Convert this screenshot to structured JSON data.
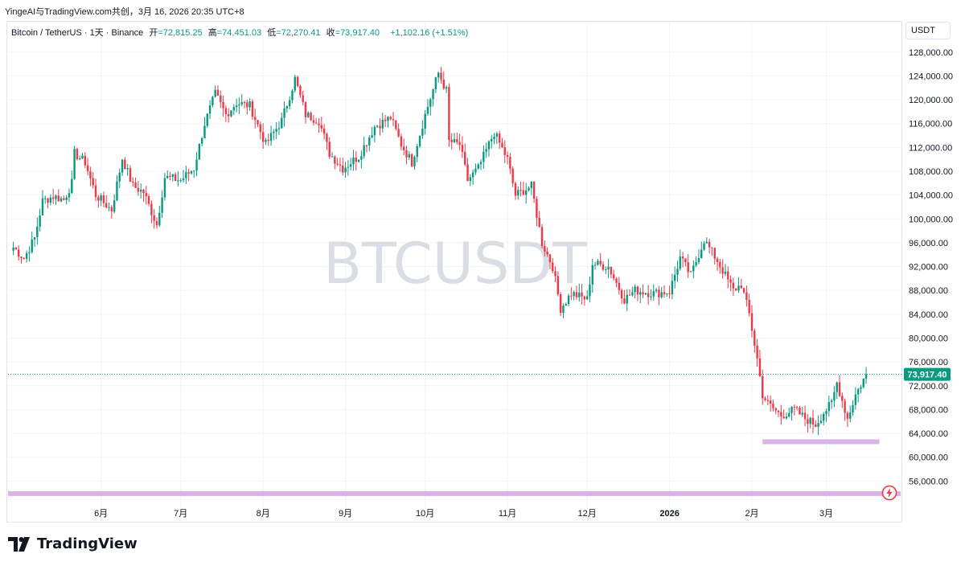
{
  "caption": "YingeAI与TradingView.com共创，3月 16, 2026 20:35 UTC+8",
  "legend": {
    "symbol": "Bitcoin / TetherUS · 1天 · Binance",
    "open_label": "开",
    "open_value": "=72,815.25",
    "high_label": "高",
    "high_value": "=74,451.03",
    "low_label": "低",
    "low_value": "=72,270.41",
    "close_label": "收",
    "close_value": "=73,917.40",
    "change": "+1,102.16 (+1.51%)"
  },
  "currency_label": "USDT",
  "brand": "TradingView",
  "colors": {
    "up": "#089981",
    "down": "#f23645",
    "zone": "#d9b2e6",
    "grid": "#f0f3fa",
    "text": "#131722",
    "watermark": "#dadde3"
  },
  "chart_data": {
    "type": "candlestick",
    "watermark": "BTCUSDT",
    "ylim": [
      52000,
      130000
    ],
    "y_ticks": [
      56000,
      60000,
      64000,
      68000,
      72000,
      76000,
      80000,
      84000,
      88000,
      92000,
      96000,
      100000,
      104000,
      108000,
      112000,
      116000,
      120000,
      124000,
      128000
    ],
    "y_tick_labels": [
      "56,000.00",
      "60,000.00",
      "64,000.00",
      "68,000.00",
      "72,000.00",
      "76,000.00",
      "80,000.00",
      "84,000.00",
      "88,000.00",
      "92,000.00",
      "96,000.00",
      "100,000.00",
      "104,000.00",
      "108,000.00",
      "112,000.00",
      "116,000.00",
      "120,000.00",
      "124,000.00",
      "128,000.00"
    ],
    "x_ticks": [
      {
        "date": "2025-06-01",
        "label": "6月"
      },
      {
        "date": "2025-07-01",
        "label": "7月"
      },
      {
        "date": "2025-08-01",
        "label": "8月"
      },
      {
        "date": "2025-09-01",
        "label": "9月"
      },
      {
        "date": "2025-10-01",
        "label": "10月"
      },
      {
        "date": "2025-11-01",
        "label": "11月"
      },
      {
        "date": "2025-12-01",
        "label": "12月"
      },
      {
        "date": "2026-01-01",
        "label": "2026",
        "bold": true
      },
      {
        "date": "2026-02-01",
        "label": "2月"
      },
      {
        "date": "2026-03-01",
        "label": "3月"
      }
    ],
    "x_start": "2025-04-27",
    "x_end": "2026-03-29",
    "last_price": 73917.4,
    "last_price_label": "73,917.40",
    "zones": [
      {
        "from": "2026-02-05",
        "to": "2026-03-21",
        "price": 62600
      },
      {
        "from": "2025-04-27",
        "to": "2026-03-29",
        "price": 53900
      }
    ],
    "close_path": [
      [
        "2025-04-29",
        95200
      ],
      [
        "2025-05-03",
        93400
      ],
      [
        "2025-05-07",
        96800
      ],
      [
        "2025-05-10",
        103000
      ],
      [
        "2025-05-14",
        103800
      ],
      [
        "2025-05-18",
        103200
      ],
      [
        "2025-05-21",
        106000
      ],
      [
        "2025-05-22",
        111000
      ],
      [
        "2025-05-26",
        109500
      ],
      [
        "2025-05-30",
        104000
      ],
      [
        "2025-06-05",
        101500
      ],
      [
        "2025-06-09",
        110200
      ],
      [
        "2025-06-13",
        105500
      ],
      [
        "2025-06-17",
        104500
      ],
      [
        "2025-06-22",
        99000
      ],
      [
        "2025-06-25",
        107000
      ],
      [
        "2025-07-01",
        106500
      ],
      [
        "2025-07-06",
        108500
      ],
      [
        "2025-07-10",
        116000
      ],
      [
        "2025-07-14",
        121000
      ],
      [
        "2025-07-18",
        117500
      ],
      [
        "2025-07-22",
        119500
      ],
      [
        "2025-07-27",
        119000
      ],
      [
        "2025-08-02",
        112500
      ],
      [
        "2025-08-08",
        116500
      ],
      [
        "2025-08-13",
        123500
      ],
      [
        "2025-08-17",
        117500
      ],
      [
        "2025-08-22",
        116500
      ],
      [
        "2025-08-26",
        111000
      ],
      [
        "2025-08-31",
        108500
      ],
      [
        "2025-09-06",
        110500
      ],
      [
        "2025-09-12",
        115500
      ],
      [
        "2025-09-18",
        117000
      ],
      [
        "2025-09-22",
        112500
      ],
      [
        "2025-09-26",
        109500
      ],
      [
        "2025-10-01",
        117500
      ],
      [
        "2025-10-06",
        124500
      ],
      [
        "2025-10-09",
        121500
      ],
      [
        "2025-10-10",
        113000
      ],
      [
        "2025-10-14",
        112500
      ],
      [
        "2025-10-17",
        106500
      ],
      [
        "2025-10-21",
        108500
      ],
      [
        "2025-10-27",
        114500
      ],
      [
        "2025-11-01",
        110000
      ],
      [
        "2025-11-04",
        104000
      ],
      [
        "2025-11-10",
        105500
      ],
      [
        "2025-11-14",
        96000
      ],
      [
        "2025-11-18",
        92000
      ],
      [
        "2025-11-21",
        85000
      ],
      [
        "2025-11-25",
        87500
      ],
      [
        "2025-12-01",
        86500
      ],
      [
        "2025-12-03",
        92500
      ],
      [
        "2025-12-09",
        92000
      ],
      [
        "2025-12-15",
        86500
      ],
      [
        "2025-12-19",
        88000
      ],
      [
        "2025-12-26",
        87500
      ],
      [
        "2026-01-01",
        87800
      ],
      [
        "2026-01-05",
        93500
      ],
      [
        "2026-01-09",
        90500
      ],
      [
        "2026-01-14",
        96500
      ],
      [
        "2026-01-19",
        93000
      ],
      [
        "2026-01-25",
        88000
      ],
      [
        "2026-01-28",
        89000
      ],
      [
        "2026-01-31",
        84000
      ],
      [
        "2026-02-03",
        76500
      ],
      [
        "2026-02-05",
        70500
      ],
      [
        "2026-02-07",
        69000
      ],
      [
        "2026-02-12",
        67000
      ],
      [
        "2026-02-17",
        68000
      ],
      [
        "2026-02-21",
        66500
      ],
      [
        "2026-02-25",
        65500
      ],
      [
        "2026-02-28",
        67500
      ],
      [
        "2026-03-03",
        69000
      ],
      [
        "2026-03-05",
        72500
      ],
      [
        "2026-03-09",
        66500
      ],
      [
        "2026-03-12",
        70500
      ],
      [
        "2026-03-16",
        73917
      ]
    ]
  }
}
